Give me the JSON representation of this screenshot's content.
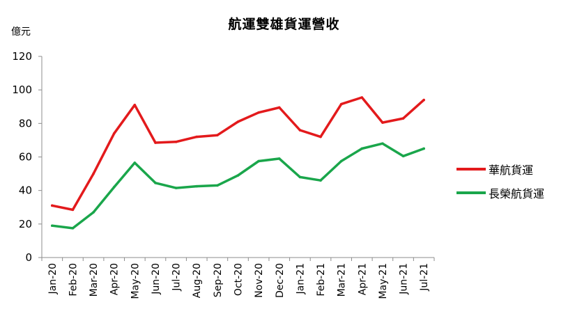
{
  "chart_data": {
    "type": "line",
    "title": "航運雙雄貨運營收",
    "ylabel": "億元",
    "xlabel": "",
    "ylim": [
      0,
      120
    ],
    "yticks": [
      0,
      20,
      40,
      60,
      80,
      100,
      120
    ],
    "grid": false,
    "legend_position": "right",
    "categories": [
      "Jan-20",
      "Feb-20",
      "Mar-20",
      "Apr-20",
      "May-20",
      "Jun-20",
      "Jul-20",
      "Aug-20",
      "Sep-20",
      "Oct-20",
      "Nov-20",
      "Dec-20",
      "Jan-21",
      "Feb-21",
      "Mar-21",
      "Apr-21",
      "May-21",
      "Jun-21",
      "Jul-21"
    ],
    "series": [
      {
        "name": "華航貨運",
        "color": "#e31a1c",
        "values": [
          31,
          28.5,
          50,
          74,
          91,
          68.5,
          69,
          72,
          73,
          81,
          86.5,
          89.5,
          76,
          72,
          91.5,
          95.5,
          80.5,
          83,
          94
        ]
      },
      {
        "name": "長榮航貨運",
        "color": "#1aa64b",
        "values": [
          19,
          17.5,
          27,
          42,
          56.5,
          44.5,
          41.5,
          42.5,
          43,
          49,
          57.5,
          59,
          48,
          46,
          57.5,
          65,
          68,
          60.5,
          65
        ]
      }
    ]
  }
}
